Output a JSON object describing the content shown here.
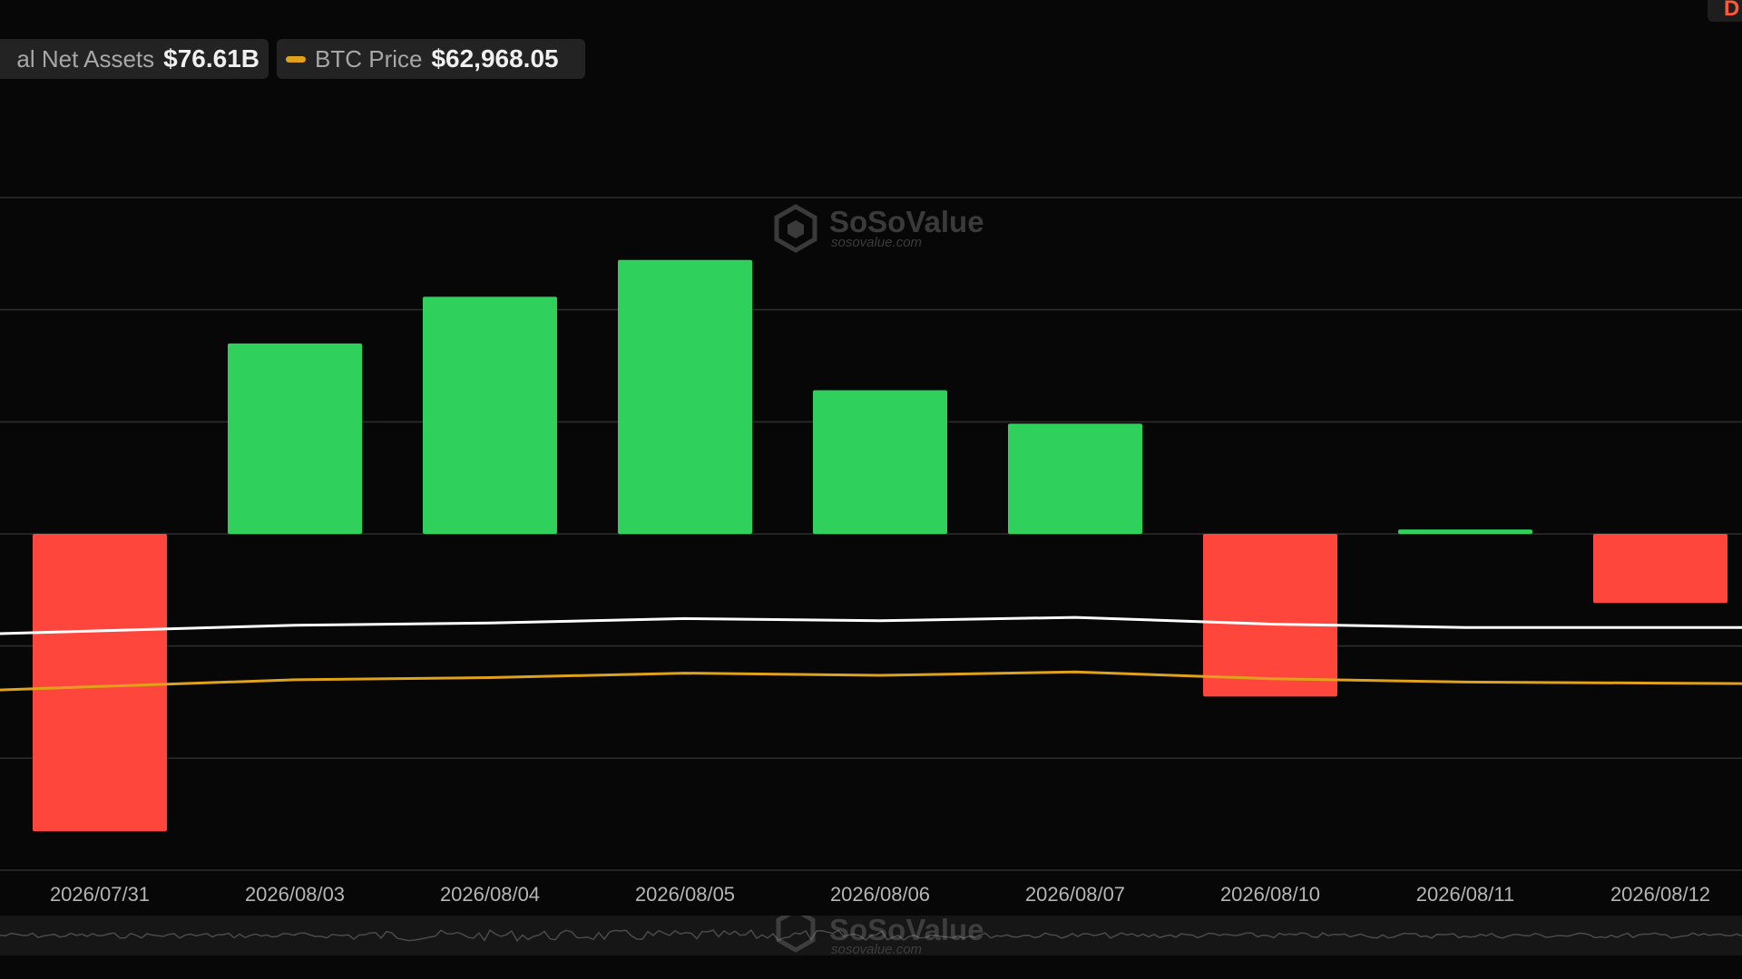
{
  "legend": {
    "net_assets": {
      "label": "al Net Assets",
      "value": "$76.61B",
      "color": "#ffffff"
    },
    "btc_price": {
      "label": "BTC Price",
      "value": "$62,968.05",
      "color": "#e0a21a"
    }
  },
  "corner_tab": {
    "label": "D"
  },
  "watermark": {
    "brand": "SoSoValue",
    "url": "sosovalue.com"
  },
  "colors": {
    "inflow": "#2fd15c",
    "outflow": "#ff463d",
    "net_assets_line": "#ffffff",
    "btc_line": "#e0a21a",
    "grid": "#2e2e2e"
  },
  "chart_data": {
    "type": "bar",
    "categories": [
      "2026/07/31",
      "2026/08/03",
      "2026/08/04",
      "2026/08/05",
      "2026/08/06",
      "2026/08/07",
      "2026/08/10",
      "2026/08/11",
      "2026/08/12"
    ],
    "series": [
      {
        "values": [
          -267,
          171,
          213,
          246,
          129,
          99,
          -146,
          4,
          -62
        ]
      },
      {
        "name": "al Net Assets",
        "values": [
          -87,
          -82,
          -80,
          -76,
          -78,
          -75,
          -81,
          -84,
          -84
        ]
      },
      {
        "name": "BTC Price",
        "values": [
          -137,
          -131,
          -129,
          -125,
          -127,
          -124,
          -130,
          -133,
          -134
        ]
      }
    ],
    "ylim": [
      -302,
      302
    ],
    "grid": true,
    "legend_position": "top-left"
  }
}
